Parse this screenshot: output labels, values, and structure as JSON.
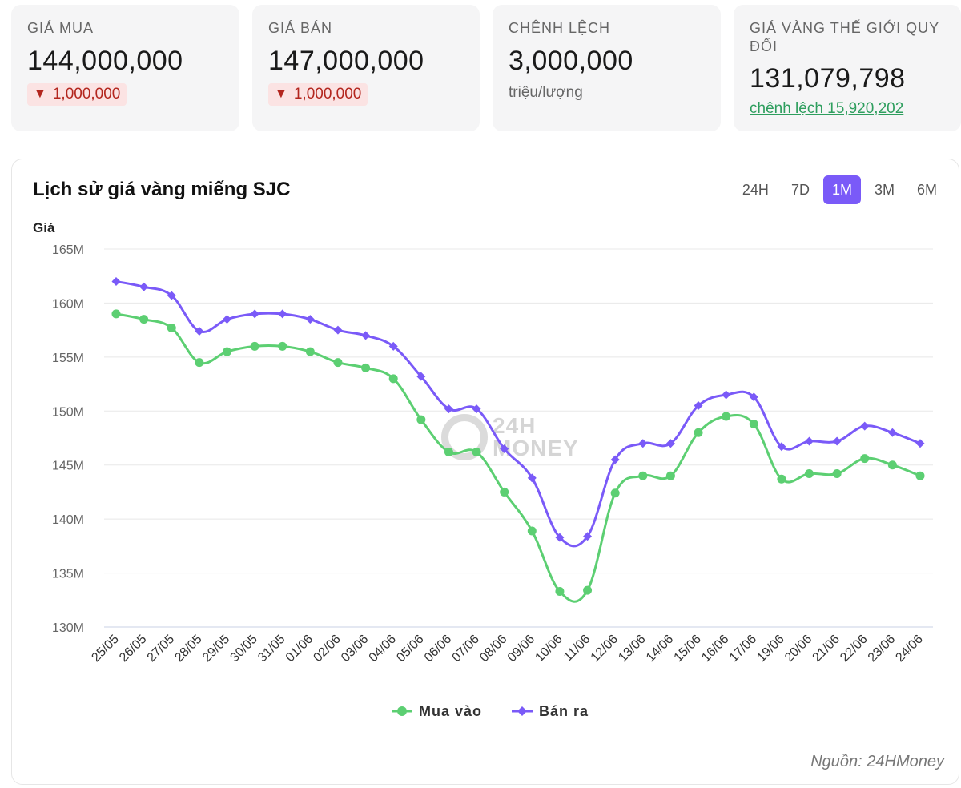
{
  "cards": [
    {
      "label": "GIÁ MUA",
      "value": "144,000,000",
      "delta": "1,000,000",
      "delta_icon": "down-triangle-icon"
    },
    {
      "label": "GIÁ BÁN",
      "value": "147,000,000",
      "delta": "1,000,000",
      "delta_icon": "down-triangle-icon"
    },
    {
      "label": "CHÊNH LỆCH",
      "value": "3,000,000",
      "unit": "triệu/lượng"
    },
    {
      "label": "GIÁ VÀNG THẾ GIỚI QUY ĐỔI",
      "value": "131,079,798",
      "diff": "chênh lệch 15,920,202"
    }
  ],
  "chart_panel": {
    "title": "Lịch sử giá vàng miếng SJC",
    "ranges": [
      "24H",
      "7D",
      "1M",
      "3M",
      "6M"
    ],
    "active_range": "1M",
    "source": "Nguồn: 24HMoney",
    "watermark": {
      "line1": "24H",
      "line2": "MONEY"
    }
  },
  "chart_data": {
    "type": "line",
    "ylabel": "Giá",
    "ylim": [
      130,
      165
    ],
    "y_ticks": [
      130,
      135,
      140,
      145,
      150,
      155,
      160,
      165
    ],
    "y_tick_labels": [
      "130M",
      "135M",
      "140M",
      "145M",
      "150M",
      "155M",
      "160M",
      "165M"
    ],
    "grid": true,
    "legend_position": "bottom",
    "categories": [
      "25/05",
      "26/05",
      "27/05",
      "28/05",
      "29/05",
      "30/05",
      "31/05",
      "01/06",
      "02/06",
      "03/06",
      "04/06",
      "05/06",
      "06/06",
      "07/06",
      "08/06",
      "09/06",
      "10/06",
      "11/06",
      "12/06",
      "13/06",
      "14/06",
      "15/06",
      "16/06",
      "17/06",
      "19/06",
      "20/06",
      "21/06",
      "22/06",
      "23/06",
      "24/06"
    ],
    "series": [
      {
        "name": "Mua vào",
        "color": "#5ccf72",
        "marker": "circle",
        "values": [
          159,
          158.5,
          157.7,
          154.5,
          155.5,
          156,
          156,
          155.5,
          154.5,
          154,
          153,
          149.2,
          146.2,
          146.2,
          142.5,
          138.9,
          133.3,
          133.4,
          142.4,
          144,
          144,
          148,
          149.5,
          148.8,
          143.7,
          144.2,
          144.2,
          145.6,
          145,
          144
        ]
      },
      {
        "name": "Bán ra",
        "color": "#7a5af8",
        "marker": "diamond",
        "values": [
          162,
          161.5,
          160.7,
          157.4,
          158.5,
          159,
          159,
          158.5,
          157.5,
          157,
          156,
          153.2,
          150.2,
          150.2,
          146.5,
          143.8,
          138.3,
          138.4,
          145.5,
          147,
          147,
          150.5,
          151.5,
          151.3,
          146.7,
          147.2,
          147.2,
          148.6,
          148,
          147
        ]
      }
    ]
  }
}
